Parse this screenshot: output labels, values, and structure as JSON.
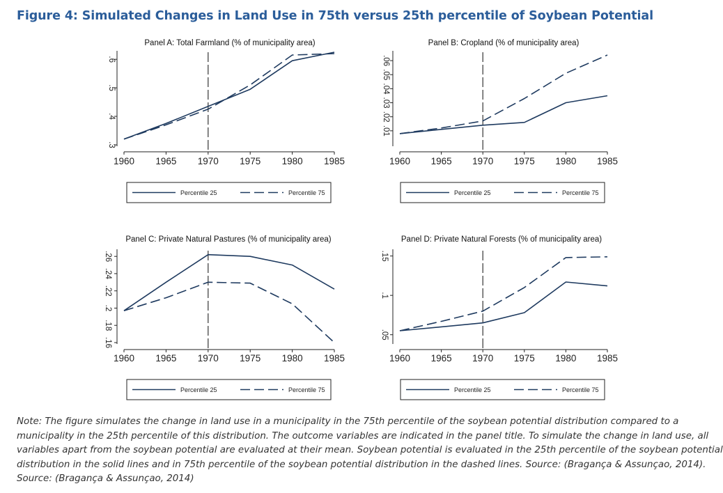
{
  "figure": {
    "title": "Figure 4: Simulated Changes in Land Use in 75th versus 25th percentile of Soybean Potential"
  },
  "chart_data": [
    {
      "type": "line",
      "title": "Panel A: Total Farmland (% of municipality area)",
      "x": [
        1960,
        1965,
        1970,
        1975,
        1980,
        1985
      ],
      "xticks": [
        "1960",
        "1965",
        "1970",
        "1975",
        "1980",
        "1985"
      ],
      "ylim": [
        0.3,
        0.62
      ],
      "yticks": [
        ".3",
        ".4",
        ".5",
        ".6"
      ],
      "ytick_values": [
        0.3,
        0.4,
        0.5,
        0.6
      ],
      "ytick_orientation": "vertical",
      "reference_line_x": 1970,
      "series": [
        {
          "name": "Percentile 25",
          "style": "solid",
          "values": [
            0.32,
            0.375,
            0.435,
            0.495,
            0.595,
            0.625
          ]
        },
        {
          "name": "Percentile 75",
          "style": "dashed",
          "values": [
            0.32,
            0.37,
            0.425,
            0.51,
            0.615,
            0.62
          ]
        }
      ],
      "legend": "below",
      "color": "#1e3a5f"
    },
    {
      "type": "line",
      "title": "Panel B: Cropland (% of municipality area)",
      "x": [
        1960,
        1965,
        1970,
        1975,
        1980,
        1985
      ],
      "xticks": [
        "1960",
        "1965",
        "1970",
        "1975",
        "1980",
        "1985"
      ],
      "ylim": [
        0.0,
        0.065
      ],
      "yticks": [
        ".01",
        ".02",
        ".03",
        ".04",
        ".05",
        ".06"
      ],
      "ytick_values": [
        0.01,
        0.02,
        0.03,
        0.04,
        0.05,
        0.06
      ],
      "ytick_orientation": "vertical",
      "reference_line_x": 1970,
      "series": [
        {
          "name": "Percentile 25",
          "style": "solid",
          "values": [
            0.008,
            0.011,
            0.014,
            0.016,
            0.03,
            0.035
          ]
        },
        {
          "name": "Percentile 75",
          "style": "dashed",
          "values": [
            0.008,
            0.012,
            0.017,
            0.033,
            0.051,
            0.064
          ]
        }
      ],
      "legend": "below",
      "color": "#1e3a5f"
    },
    {
      "type": "line",
      "title": "Panel C: Private Natural Pastures (% of municipality area)",
      "x": [
        1960,
        1965,
        1970,
        1975,
        1980,
        1985
      ],
      "xticks": [
        "1960",
        "1965",
        "1970",
        "1975",
        "1980",
        "1985"
      ],
      "ylim": [
        0.16,
        0.265
      ],
      "yticks": [
        ".16",
        ".18",
        ".2",
        ".22",
        ".24",
        ".26"
      ],
      "ytick_values": [
        0.16,
        0.18,
        0.2,
        0.22,
        0.24,
        0.26
      ],
      "ytick_orientation": "vertical",
      "reference_line_x": 1970,
      "series": [
        {
          "name": "Percentile 25",
          "style": "solid",
          "values": [
            0.197,
            0.23,
            0.262,
            0.26,
            0.25,
            0.222
          ]
        },
        {
          "name": "Percentile 75",
          "style": "dashed",
          "values": [
            0.197,
            0.212,
            0.23,
            0.229,
            0.205,
            0.16
          ]
        }
      ],
      "legend": "below",
      "color": "#1e3a5f"
    },
    {
      "type": "line",
      "title": "Panel D: Private Natural Forests (% of municipality area)",
      "x": [
        1960,
        1965,
        1970,
        1975,
        1980,
        1985
      ],
      "xticks": [
        "1960",
        "1965",
        "1970",
        "1975",
        "1980",
        "1985"
      ],
      "ylim": [
        0.04,
        0.155
      ],
      "yticks": [
        ".05",
        ".1",
        ".15"
      ],
      "ytick_values": [
        0.05,
        0.1,
        0.15
      ],
      "ytick_orientation": "vertical",
      "reference_line_x": 1970,
      "series": [
        {
          "name": "Percentile 25",
          "style": "solid",
          "values": [
            0.055,
            0.06,
            0.065,
            0.078,
            0.117,
            0.112
          ]
        },
        {
          "name": "Percentile 75",
          "style": "dashed",
          "values": [
            0.055,
            0.067,
            0.08,
            0.11,
            0.148,
            0.149
          ]
        }
      ],
      "legend": "below",
      "color": "#1e3a5f"
    }
  ],
  "note": {
    "lines": [
      "Note: The figure simulates the change in land use in a municipality in the 75th percentile of the soybean potential distribution compared to a",
      "municipality in the 25th percentile of this distribution. The outcome variables are indicated in the panel title. To simulate the change in land use, all",
      "variables apart from the soybean potential are evaluated at their mean. Soybean potential is evaluated in the 25th percentile of the soybean potential",
      "distribution in the solid lines and in 75th percentile of the soybean potential distribution in the dashed lines. Source: (Bragança & Assunçao, 2014).",
      "Source: (Bragança & Assunçao, 2014)"
    ]
  }
}
